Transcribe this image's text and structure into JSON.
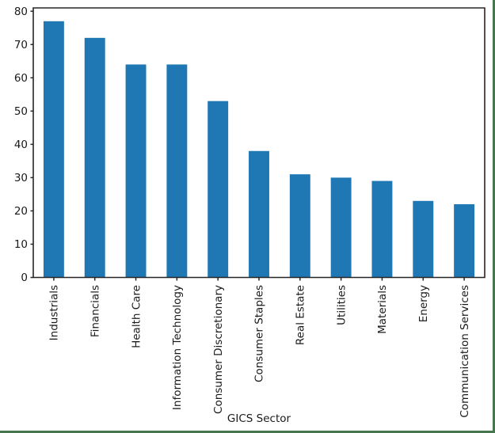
{
  "frame": {
    "border_color": "#45764e"
  },
  "chart_data": {
    "type": "bar",
    "title": "",
    "xlabel": "GICS Sector",
    "ylabel": "",
    "categories": [
      "Industrials",
      "Financials",
      "Health Care",
      "Information Technology",
      "Consumer Discretionary",
      "Consumer Staples",
      "Real Estate",
      "Utilities",
      "Materials",
      "Energy",
      "Communication Services"
    ],
    "values": [
      77,
      72,
      64,
      64,
      53,
      38,
      31,
      30,
      29,
      23,
      22
    ],
    "bar_color": "#1f77b4",
    "axis_color": "#262626",
    "text_color": "#1a1a1a",
    "yticks": [
      0,
      10,
      20,
      30,
      40,
      50,
      60,
      70,
      80
    ],
    "ylim": [
      0,
      81
    ],
    "x_tick_rotation": 90,
    "grid": false,
    "legend": "none"
  }
}
